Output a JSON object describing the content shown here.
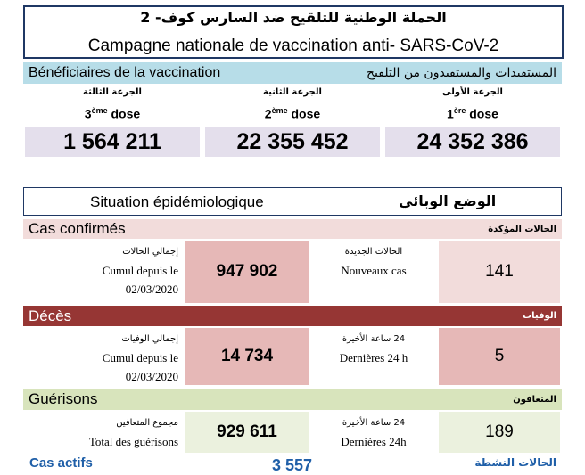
{
  "header": {
    "title_ar": "الحملة الوطنية للتلقيح ضد السارس كوف- 2",
    "title_fr": "Campagne nationale de vaccination anti- SARS-CoV-2"
  },
  "vaccination": {
    "label_fr": "Bénéficiaires de la vaccination",
    "label_ar": "المستفيدات والمستفيدون من التلقيح",
    "doses": [
      {
        "label_ar": "الجرعة الثالثة",
        "number": "3",
        "suffix": "ème",
        "word": "dose",
        "value": "1 564 211"
      },
      {
        "label_ar": "الجرعة الثانية",
        "number": "2",
        "suffix": "ème",
        "word": "dose",
        "value": "22 355 452"
      },
      {
        "label_ar": "الجرعة الأولى",
        "number": "1",
        "suffix": "ère",
        "word": "dose",
        "value": "24 352 386"
      }
    ]
  },
  "epidemiology": {
    "title_fr": "Situation épidémiologique",
    "title_ar": "الوضع الوبائي",
    "sections": [
      {
        "label_fr": "Cas confirmés",
        "label_ar": "الحالات المؤكدة",
        "total_label_ar": "إجمالي الحالات",
        "total_label_fr": "Cumul depuis le",
        "total_date": "02/03/2020",
        "total_value": "947 902",
        "recent_label_ar": "الحالات الجديدة",
        "recent_label_fr": "Nouveaux cas",
        "recent_value": "141"
      },
      {
        "label_fr": "Décès",
        "label_ar": "الوفيات",
        "total_label_ar": "إجمالي الوفيات",
        "total_label_fr": "Cumul depuis le",
        "total_date": "02/03/2020",
        "total_value": "14 734",
        "recent_label_ar": "24 ساعة الأخيرة",
        "recent_label_fr": "Dernières 24 h",
        "recent_value": "5"
      },
      {
        "label_fr": "Guérisons",
        "label_ar": "المتعافون",
        "total_label_ar": "مجموع المتعافين",
        "total_label_fr": "Total des guérisons",
        "total_value": "929 611",
        "recent_label_ar": "24 ساعة الأخيرة",
        "recent_label_fr": "Dernières 24h",
        "recent_value": "189"
      }
    ]
  },
  "active": {
    "label_fr": "Cas actifs",
    "value": "3 557",
    "label_ar": "الحالات النشطة"
  }
}
